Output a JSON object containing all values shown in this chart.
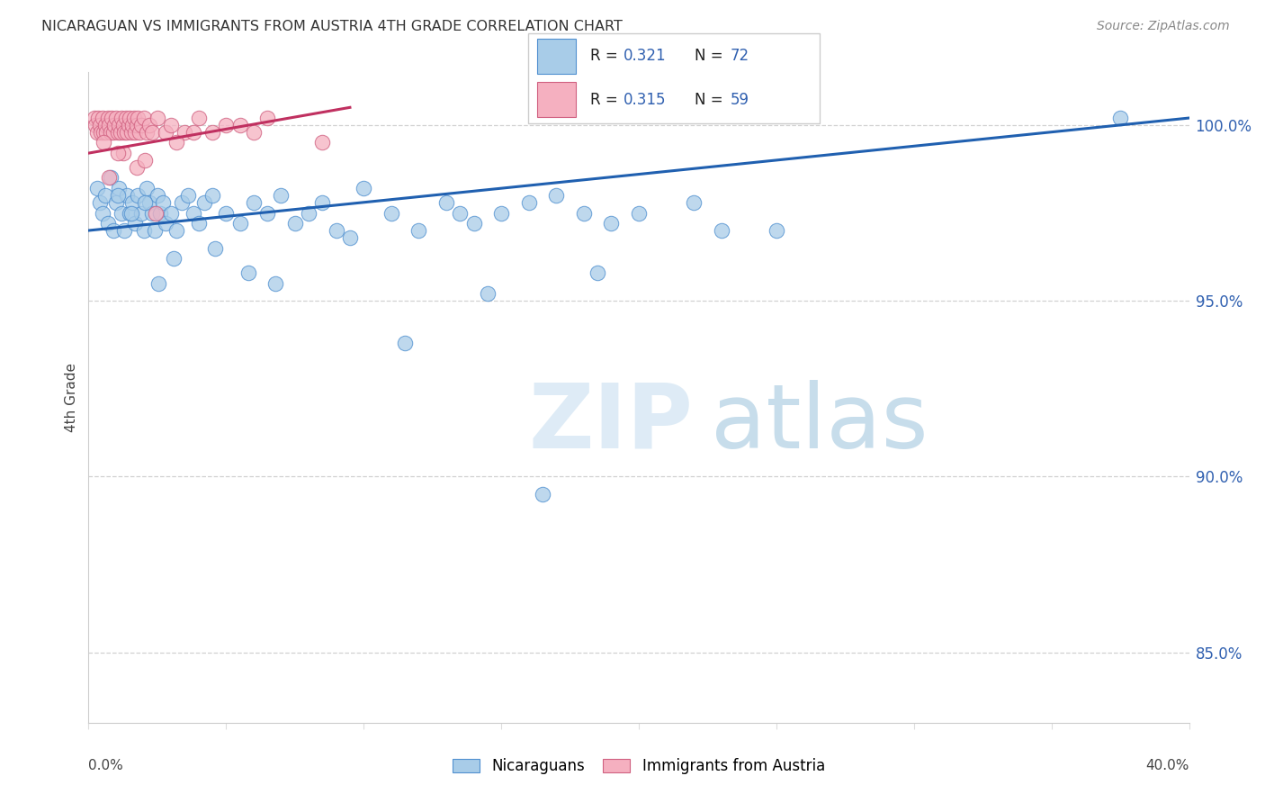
{
  "title": "NICARAGUAN VS IMMIGRANTS FROM AUSTRIA 4TH GRADE CORRELATION CHART",
  "source": "Source: ZipAtlas.com",
  "ylabel": "4th Grade",
  "xlim": [
    0.0,
    40.0
  ],
  "ylim": [
    83.0,
    101.5
  ],
  "yticks": [
    85.0,
    90.0,
    95.0,
    100.0
  ],
  "ytick_labels": [
    "85.0%",
    "90.0%",
    "95.0%",
    "100.0%"
  ],
  "xtick_left_label": "0.0%",
  "xtick_right_label": "40.0%",
  "blue_face_color": "#a8cce8",
  "blue_edge_color": "#5090d0",
  "pink_face_color": "#f5b0c0",
  "pink_edge_color": "#d06080",
  "blue_line_color": "#2060b0",
  "pink_line_color": "#c03060",
  "tick_color": "#3060b0",
  "R_blue": 0.321,
  "N_blue": 72,
  "R_pink": 0.315,
  "N_pink": 59,
  "legend_label_blue": "Nicaraguans",
  "legend_label_pink": "Immigrants from Austria",
  "blue_x": [
    0.3,
    0.4,
    0.5,
    0.6,
    0.7,
    0.8,
    0.9,
    1.0,
    1.1,
    1.2,
    1.3,
    1.4,
    1.5,
    1.6,
    1.7,
    1.8,
    1.9,
    2.0,
    2.1,
    2.2,
    2.3,
    2.4,
    2.5,
    2.6,
    2.7,
    2.8,
    3.0,
    3.2,
    3.4,
    3.6,
    3.8,
    4.0,
    4.2,
    4.5,
    5.0,
    5.5,
    6.0,
    6.5,
    7.0,
    7.5,
    8.0,
    8.5,
    9.0,
    10.0,
    11.0,
    12.0,
    13.0,
    13.5,
    14.0,
    15.0,
    16.0,
    17.0,
    18.0,
    19.0,
    20.0,
    22.0,
    25.0,
    37.5,
    1.05,
    1.55,
    2.05,
    2.55,
    3.1,
    4.6,
    5.8,
    6.8,
    9.5,
    14.5,
    18.5,
    23.0,
    11.5,
    16.5
  ],
  "blue_y": [
    98.2,
    97.8,
    97.5,
    98.0,
    97.2,
    98.5,
    97.0,
    97.8,
    98.2,
    97.5,
    97.0,
    98.0,
    97.5,
    97.8,
    97.2,
    98.0,
    97.5,
    97.0,
    98.2,
    97.8,
    97.5,
    97.0,
    98.0,
    97.5,
    97.8,
    97.2,
    97.5,
    97.0,
    97.8,
    98.0,
    97.5,
    97.2,
    97.8,
    98.0,
    97.5,
    97.2,
    97.8,
    97.5,
    98.0,
    97.2,
    97.5,
    97.8,
    97.0,
    98.2,
    97.5,
    97.0,
    97.8,
    97.5,
    97.2,
    97.5,
    97.8,
    98.0,
    97.5,
    97.2,
    97.5,
    97.8,
    97.0,
    100.2,
    98.0,
    97.5,
    97.8,
    95.5,
    96.2,
    96.5,
    95.8,
    95.5,
    96.8,
    95.2,
    95.8,
    97.0,
    93.8,
    89.5
  ],
  "pink_x": [
    0.2,
    0.25,
    0.3,
    0.35,
    0.4,
    0.45,
    0.5,
    0.55,
    0.6,
    0.65,
    0.7,
    0.75,
    0.8,
    0.85,
    0.9,
    0.95,
    1.0,
    1.05,
    1.1,
    1.15,
    1.2,
    1.25,
    1.3,
    1.35,
    1.4,
    1.45,
    1.5,
    1.55,
    1.6,
    1.65,
    1.7,
    1.75,
    1.8,
    1.85,
    1.9,
    2.0,
    2.1,
    2.2,
    2.3,
    2.5,
    2.8,
    3.0,
    3.5,
    4.0,
    4.5,
    5.0,
    6.0,
    1.25,
    0.55,
    1.75,
    2.05,
    0.75,
    1.05,
    2.45,
    3.2,
    3.8,
    5.5,
    8.5,
    6.5
  ],
  "pink_y": [
    100.2,
    100.0,
    99.8,
    100.2,
    100.0,
    99.8,
    100.2,
    99.8,
    100.0,
    99.8,
    100.2,
    100.0,
    99.8,
    100.2,
    99.8,
    100.0,
    100.2,
    99.8,
    100.0,
    99.8,
    100.2,
    100.0,
    99.8,
    100.2,
    99.8,
    100.0,
    100.2,
    99.8,
    100.0,
    100.2,
    99.8,
    100.0,
    100.2,
    99.8,
    100.0,
    100.2,
    99.8,
    100.0,
    99.8,
    100.2,
    99.8,
    100.0,
    99.8,
    100.2,
    99.8,
    100.0,
    99.8,
    99.2,
    99.5,
    98.8,
    99.0,
    98.5,
    99.2,
    97.5,
    99.5,
    99.8,
    100.0,
    99.5,
    100.2
  ]
}
